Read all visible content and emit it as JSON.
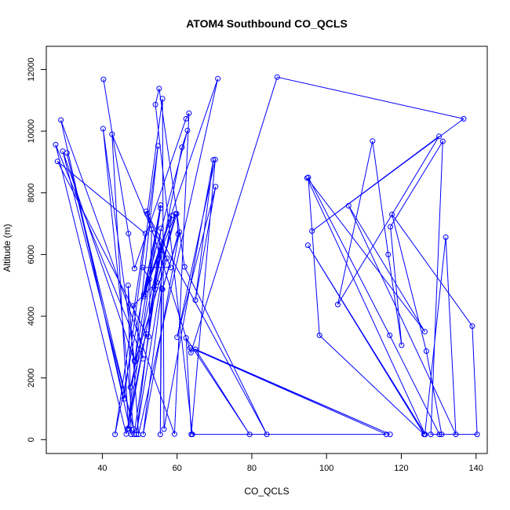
{
  "chart_data": {
    "type": "line",
    "title": "ATOM4 Southbound CO_QCLS",
    "xlabel": "CO_QCLS",
    "ylabel": "Altitude (m)",
    "xlim": [
      25,
      143
    ],
    "ylim": [
      -450,
      12750
    ],
    "x_ticks": [
      40,
      60,
      80,
      100,
      120,
      140
    ],
    "y_ticks": [
      0,
      2000,
      4000,
      6000,
      8000,
      10000,
      12000
    ],
    "series_color": "#0000ff",
    "grid": false,
    "legend": "none",
    "points": [
      [
        40.3,
        11680
      ],
      [
        47.0,
        6680
      ],
      [
        48.6,
        5550
      ],
      [
        62.4,
        10400
      ],
      [
        63.2,
        10580
      ],
      [
        59.3,
        180
      ],
      [
        28.9,
        10360
      ],
      [
        47.7,
        170
      ],
      [
        46.9,
        5000
      ],
      [
        49.7,
        170
      ],
      [
        70.9,
        11700
      ],
      [
        51.1,
        4700
      ],
      [
        62.8,
        10020
      ],
      [
        61.3,
        9480
      ],
      [
        46.4,
        180
      ],
      [
        27.5,
        9560
      ],
      [
        50.9,
        2620
      ],
      [
        48.2,
        4340
      ],
      [
        54.5,
        5100
      ],
      [
        48.5,
        170
      ],
      [
        40.2,
        10080
      ],
      [
        48.6,
        2570
      ],
      [
        29.4,
        9350
      ],
      [
        48.4,
        340
      ],
      [
        30.5,
        9290
      ],
      [
        45.8,
        1320
      ],
      [
        54.9,
        9520
      ],
      [
        46.8,
        360
      ],
      [
        55.6,
        7500
      ],
      [
        43.4,
        170
      ],
      [
        51.5,
        6680
      ],
      [
        28.0,
        9020
      ],
      [
        51.8,
        3420
      ],
      [
        47.5,
        1700
      ],
      [
        56.0,
        6350
      ],
      [
        47.0,
        340
      ],
      [
        42.6,
        9900
      ],
      [
        53.2,
        6820
      ],
      [
        52.4,
        3340
      ],
      [
        55.7,
        6850
      ],
      [
        49.1,
        170
      ],
      [
        58.6,
        7260
      ],
      [
        51.1,
        4640
      ],
      [
        55.6,
        7600
      ],
      [
        48.7,
        2520
      ],
      [
        57.3,
        5880
      ],
      [
        55.8,
        6130
      ],
      [
        55.5,
        170
      ],
      [
        55.9,
        4900
      ],
      [
        50.9,
        170
      ],
      [
        60.6,
        6730
      ],
      [
        56.1,
        4870
      ],
      [
        60.3,
        6660
      ],
      [
        59.9,
        7320
      ],
      [
        54.1,
        4880
      ],
      [
        59.6,
        7320
      ],
      [
        52.6,
        5200
      ],
      [
        50.8,
        5580
      ],
      [
        58.3,
        5580
      ],
      [
        52.0,
        7320
      ],
      [
        56.1,
        11050
      ],
      [
        56.5,
        340
      ],
      [
        69.7,
        9070
      ],
      [
        64.9,
        4520
      ],
      [
        70.3,
        8200
      ],
      [
        60.0,
        3320
      ],
      [
        70.2,
        9080
      ],
      [
        63.8,
        170
      ],
      [
        62.4,
        3300
      ],
      [
        79.4,
        170
      ],
      [
        64.9,
        2930
      ],
      [
        117.0,
        170
      ],
      [
        63.5,
        2980
      ],
      [
        116.0,
        170
      ],
      [
        64.1,
        170
      ],
      [
        54.2,
        10860
      ],
      [
        55.2,
        11380
      ],
      [
        62.0,
        5600
      ],
      [
        84.0,
        170
      ],
      [
        51.7,
        7400
      ],
      [
        63.7,
        2820
      ],
      [
        86.8,
        11750
      ],
      [
        136.7,
        10400
      ],
      [
        96.1,
        6760
      ],
      [
        130.1,
        9830
      ],
      [
        103.0,
        4380
      ],
      [
        112.3,
        9680
      ],
      [
        116.5,
        6000
      ],
      [
        120.1,
        3060
      ],
      [
        117.1,
        6900
      ],
      [
        131.1,
        9670
      ],
      [
        127.9,
        170
      ],
      [
        130.8,
        170
      ],
      [
        126.7,
        2870
      ],
      [
        117.5,
        7300
      ],
      [
        139.0,
        3680
      ],
      [
        140.3,
        170
      ],
      [
        130.2,
        170
      ],
      [
        116.9,
        3380
      ],
      [
        95.1,
        8500
      ],
      [
        98.1,
        3380
      ],
      [
        126.1,
        170
      ],
      [
        95.0,
        6300
      ],
      [
        126.4,
        170
      ],
      [
        94.8,
        8480
      ],
      [
        126.3,
        3500
      ],
      [
        105.9,
        7580
      ],
      [
        134.6,
        170
      ],
      [
        131.9,
        6560
      ],
      [
        126.3,
        170
      ]
    ]
  }
}
